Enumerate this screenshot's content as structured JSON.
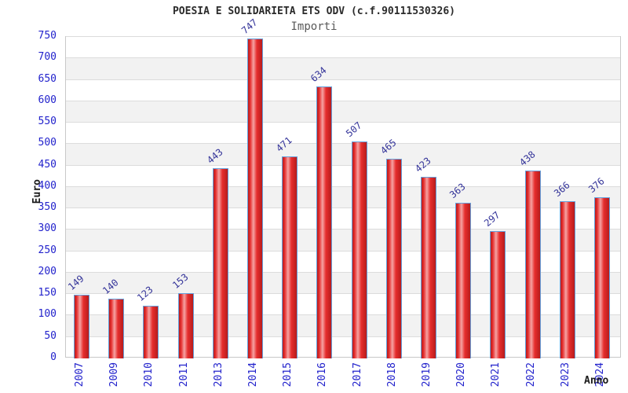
{
  "chart": {
    "title": "POESIA E SOLIDARIETA ETS ODV (c.f.90111530326)",
    "subtitle": "Importi",
    "ylabel": "Euro",
    "xlabel": "Anno"
  },
  "chart_data": {
    "type": "bar",
    "title": "POESIA E SOLIDARIETA ETS ODV (c.f.90111530326)",
    "subtitle": "Importi",
    "xlabel": "Anno",
    "ylabel": "Euro",
    "categories": [
      "2007",
      "2009",
      "2010",
      "2011",
      "2013",
      "2014",
      "2015",
      "2016",
      "2017",
      "2018",
      "2019",
      "2020",
      "2021",
      "2022",
      "2023",
      "2024"
    ],
    "values": [
      149,
      140,
      123,
      153,
      443,
      747,
      471,
      634,
      507,
      465,
      423,
      363,
      297,
      438,
      366,
      376
    ],
    "ylim": [
      0,
      750
    ],
    "ytick_step": 50,
    "yticks": [
      0,
      50,
      100,
      150,
      200,
      250,
      300,
      350,
      400,
      450,
      500,
      550,
      600,
      650,
      700,
      750
    ],
    "grid": true,
    "legend_position": "none",
    "colors": {
      "axis_text": "#2222cc",
      "value_label": "#333399",
      "bar_border": "#64a0dc",
      "bar_dark": "#b71c1c",
      "bar_main": "#e62e2e",
      "bar_highlight": "#f5a3a3",
      "band_gray": "#f2f2f2",
      "band_white": "#ffffff",
      "gridline": "#dcdcdc",
      "title_text": "#2b2b2b",
      "subtitle_text": "#595959"
    }
  }
}
